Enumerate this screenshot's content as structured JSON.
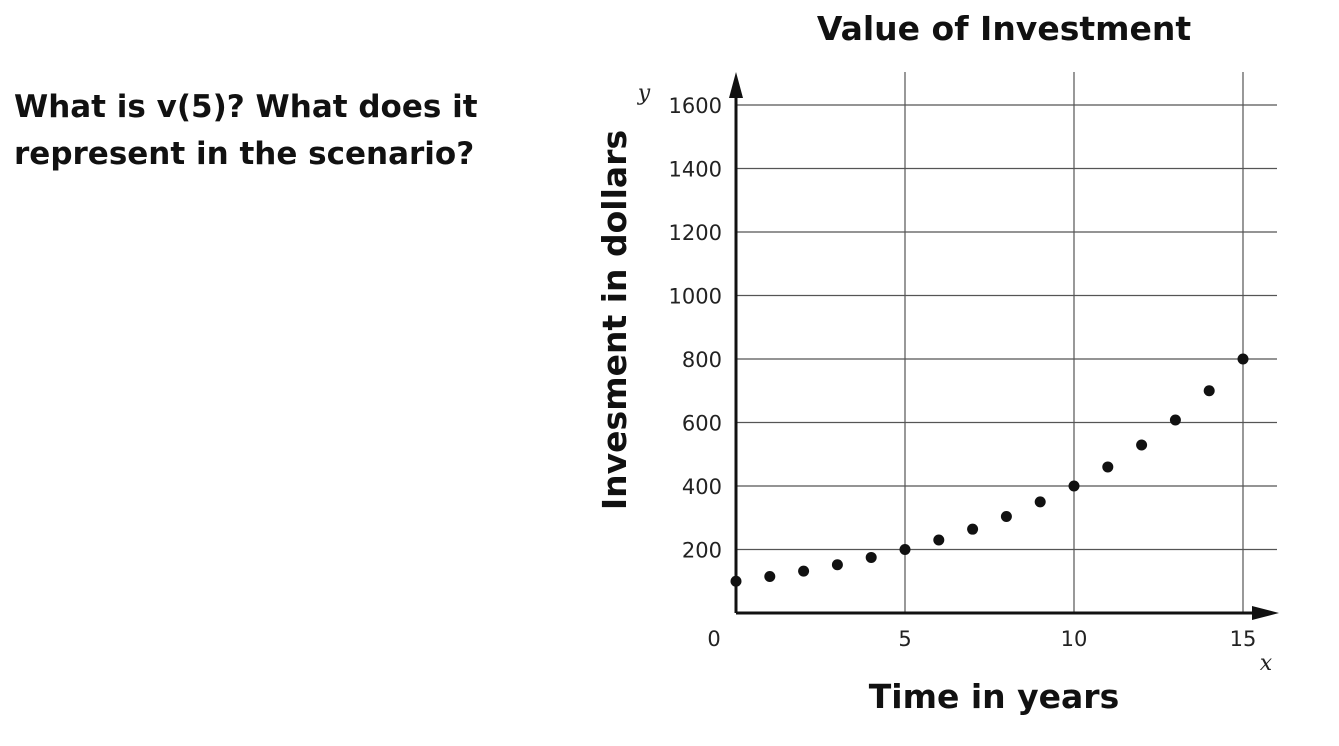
{
  "question": {
    "line1": "What is v(5)? What does it",
    "line2": "represent in the scenario?"
  },
  "chart_data": {
    "type": "scatter",
    "title": "Value of Investment",
    "xlabel": "Time in years",
    "ylabel": "Invesment in dollars",
    "x_var": "x",
    "y_var": "y",
    "xlim": [
      0,
      16
    ],
    "ylim": [
      0,
      1600
    ],
    "x_ticks": [
      5,
      10,
      15
    ],
    "x_origin_label": "0",
    "y_ticks": [
      200,
      400,
      600,
      800,
      1000,
      1200,
      1400,
      1600
    ],
    "grid": true,
    "point_color": "#111111",
    "points": [
      {
        "x": 0,
        "y": 100
      },
      {
        "x": 1,
        "y": 115
      },
      {
        "x": 2,
        "y": 132
      },
      {
        "x": 3,
        "y": 152
      },
      {
        "x": 4,
        "y": 175
      },
      {
        "x": 5,
        "y": 200
      },
      {
        "x": 6,
        "y": 230
      },
      {
        "x": 7,
        "y": 264
      },
      {
        "x": 8,
        "y": 304
      },
      {
        "x": 9,
        "y": 350
      },
      {
        "x": 10,
        "y": 400
      },
      {
        "x": 11,
        "y": 460
      },
      {
        "x": 12,
        "y": 529
      },
      {
        "x": 13,
        "y": 608
      },
      {
        "x": 14,
        "y": 700
      },
      {
        "x": 15,
        "y": 800
      }
    ]
  }
}
